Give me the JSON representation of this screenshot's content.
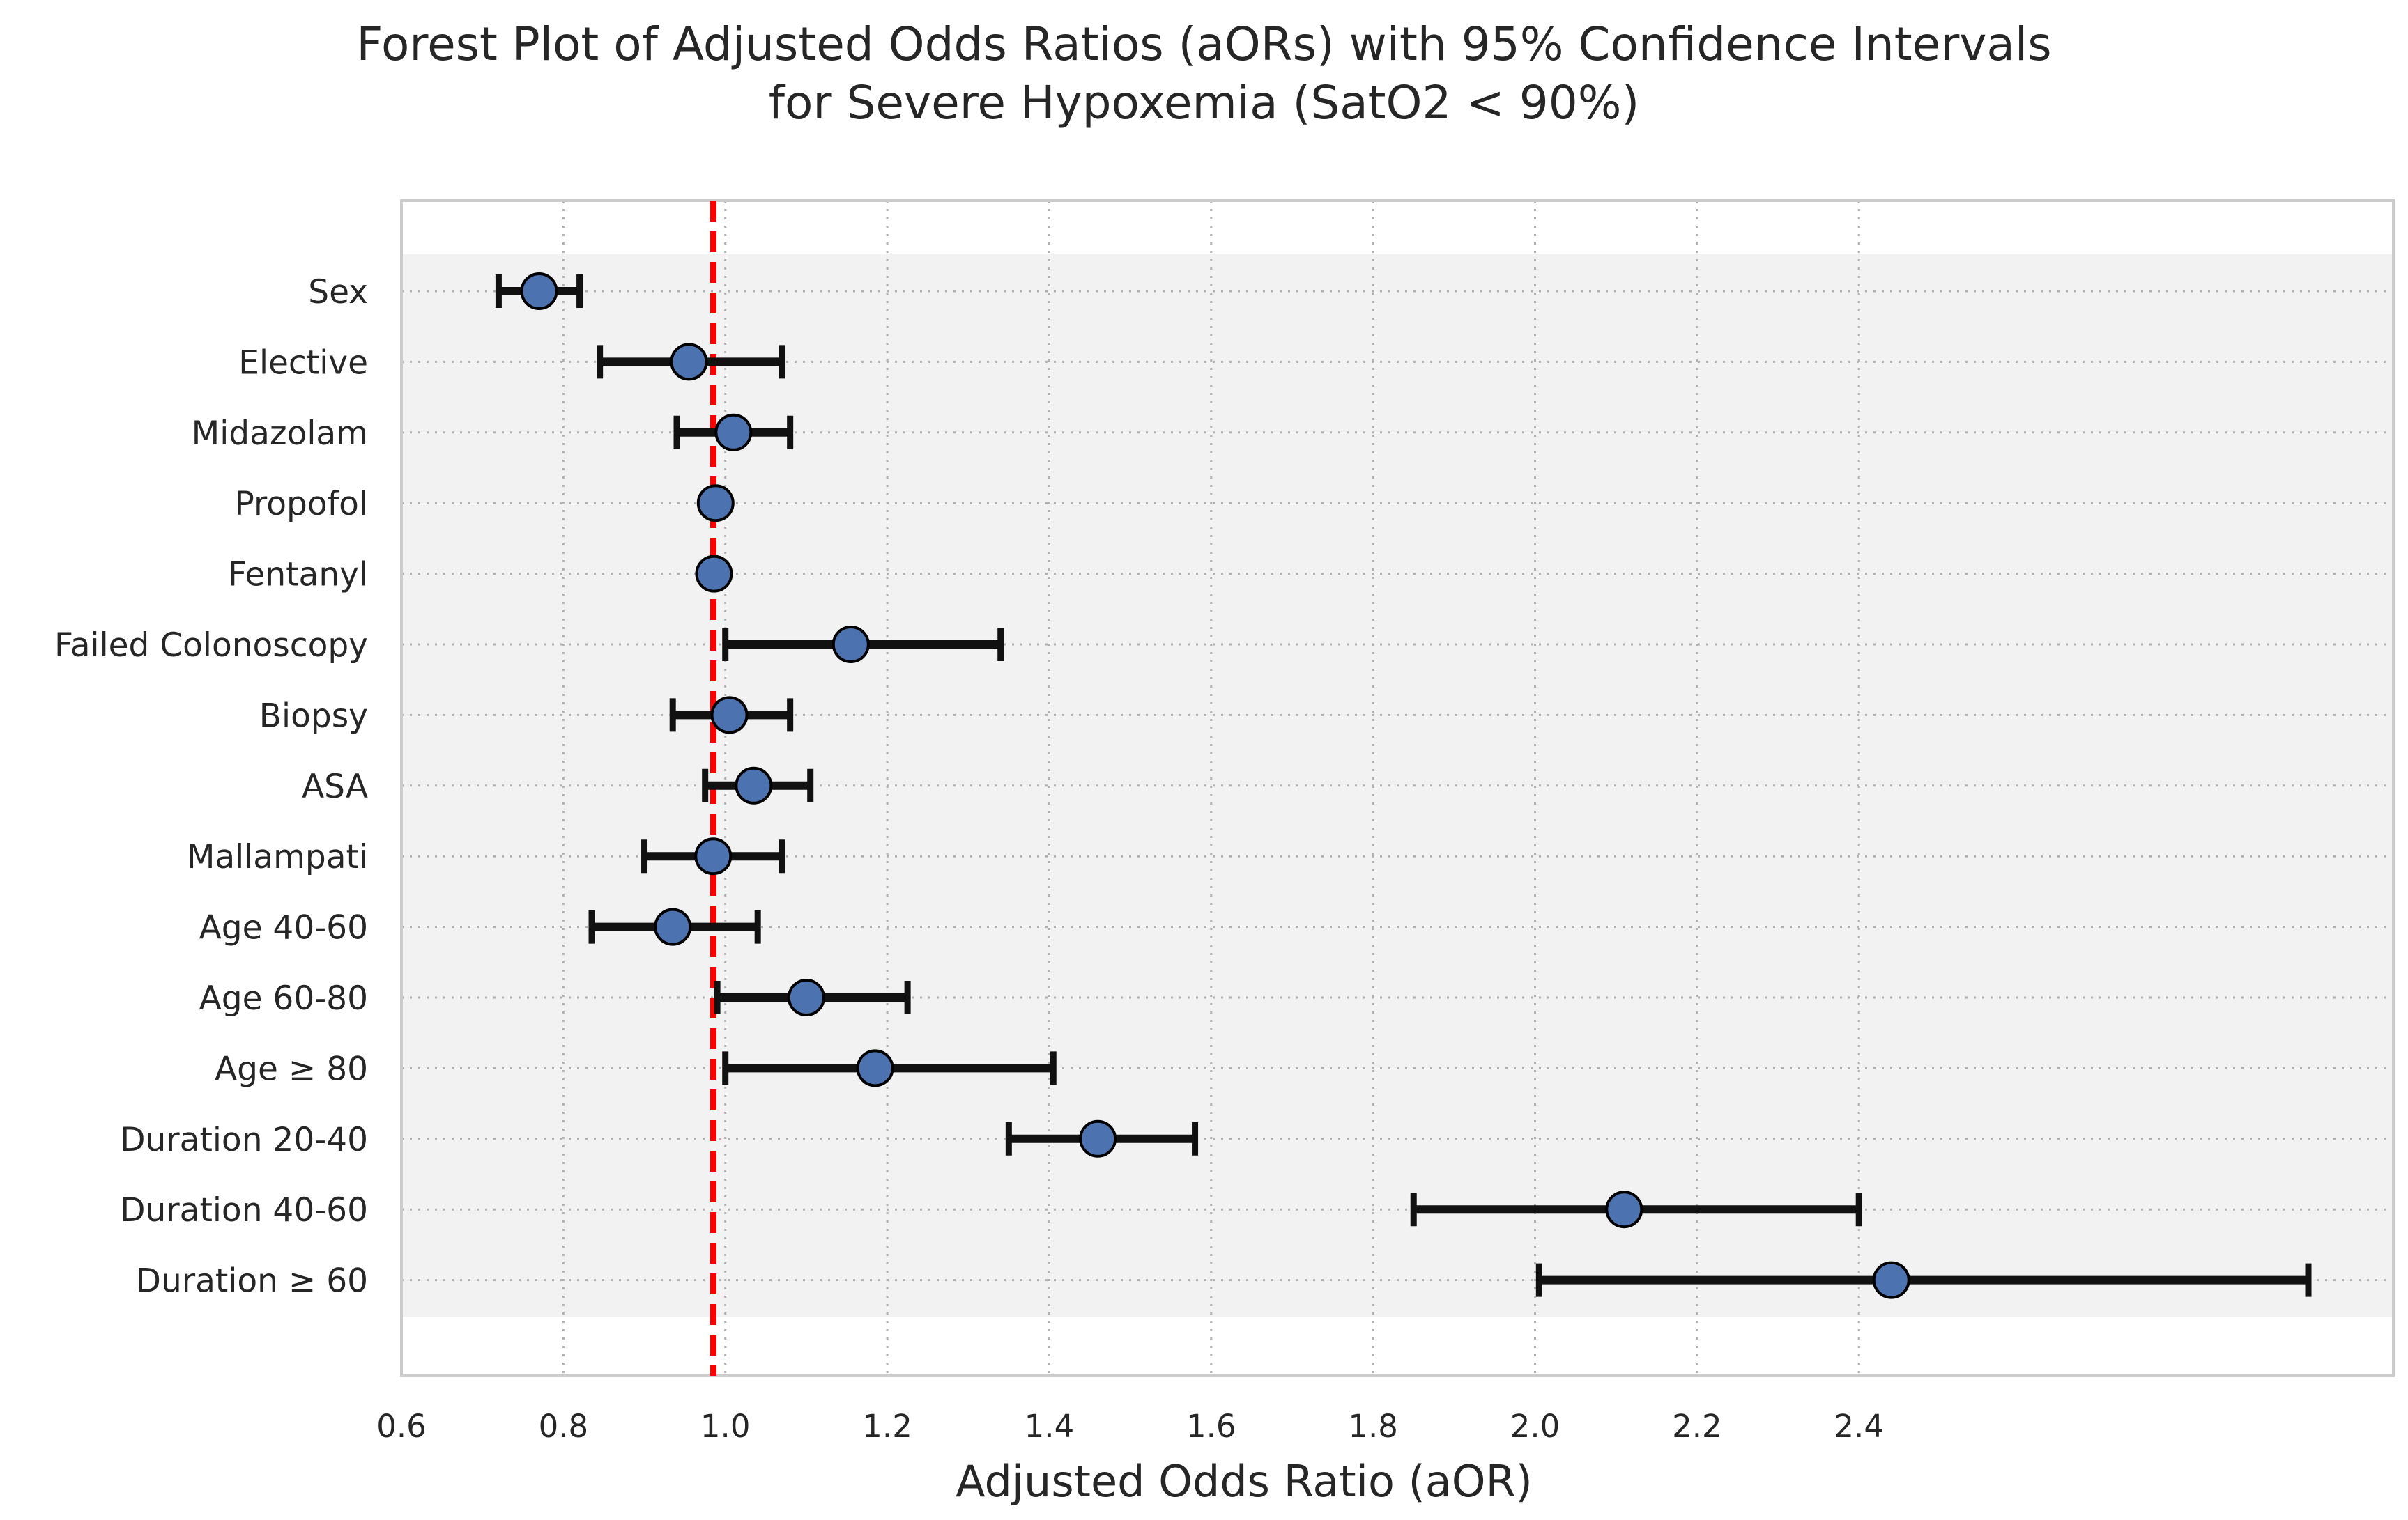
{
  "chart_data": {
    "type": "forest",
    "title_lines": [
      "Forest Plot of Adjusted Odds Ratios (aORs) with 95% Confidence Intervals",
      "for Severe Hypoxemia (SatO2 < 90%)"
    ],
    "xlabel": "Adjusted Odds Ratio (aOR)",
    "ylabel": "",
    "xlim": [
      0.6,
      3.06
    ],
    "xticks": [
      "0.6",
      "0.8",
      "1.0",
      "1.2",
      "1.4",
      "1.6",
      "1.8",
      "2.0",
      "2.2",
      "2.4"
    ],
    "reference_line": 0.985,
    "grid": true,
    "categories": [
      "Sex",
      "Elective",
      "Midazolam",
      "Propofol",
      "Fentanyl",
      "Failed Colonoscopy",
      "Biopsy",
      "ASA",
      "Mallampati",
      "Age 40-60",
      "Age 60-80",
      "Age ≥ 80",
      "Duration 20-40",
      "Duration 40-60",
      "Duration ≥ 60"
    ],
    "estimates": [
      0.77,
      0.955,
      1.01,
      0.988,
      0.986,
      1.155,
      1.005,
      1.035,
      0.985,
      0.935,
      1.1,
      1.185,
      1.46,
      2.11,
      2.44
    ],
    "ci_lower": [
      0.72,
      0.845,
      0.94,
      0.985,
      0.985,
      1.0,
      0.935,
      0.975,
      0.9,
      0.835,
      0.99,
      1.0,
      1.35,
      1.85,
      2.005
    ],
    "ci_upper": [
      0.82,
      1.07,
      1.08,
      0.99,
      0.988,
      1.34,
      1.08,
      1.105,
      1.07,
      1.04,
      1.225,
      1.405,
      1.58,
      2.4,
      2.955
    ]
  },
  "colors": {
    "marker": "#4c72b0",
    "reference": "#ff0000",
    "whisker": "#111111",
    "band": "#f2f2f2",
    "frame": "#cccccc",
    "grid": "#b0b0b0",
    "text": "#262626"
  }
}
